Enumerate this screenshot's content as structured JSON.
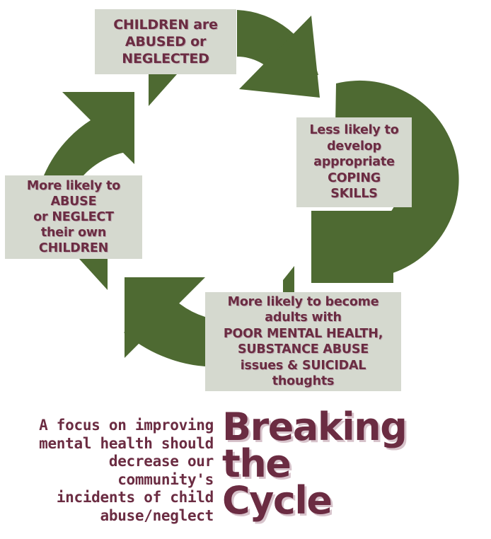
{
  "colors": {
    "arrow": "#4e6a32",
    "box_fill": "#d5d9cf",
    "text": "#6b2c42"
  },
  "cycle": {
    "steps": [
      {
        "id": "top",
        "lines": [
          "CHILDREN are",
          "ABUSED or",
          "NEGLECTED"
        ]
      },
      {
        "id": "right",
        "lines": [
          "Less likely to",
          "develop",
          "appropriate",
          "COPING",
          "SKILLS"
        ]
      },
      {
        "id": "bottom",
        "lines": [
          "More likely to become",
          "adults with",
          "POOR MENTAL HEALTH,",
          "SUBSTANCE ABUSE",
          "issues & SUICIDAL",
          "thoughts"
        ]
      },
      {
        "id": "left",
        "lines": [
          "More likely to",
          "ABUSE",
          "or NEGLECT",
          "their own",
          "CHILDREN"
        ]
      }
    ]
  },
  "footer": {
    "message_lines": [
      "A focus on improving",
      "mental health should",
      "decrease our",
      "community's",
      "incidents of child",
      "abuse/neglect"
    ],
    "title_lines": [
      "Breaking",
      "the",
      "Cycle"
    ]
  }
}
